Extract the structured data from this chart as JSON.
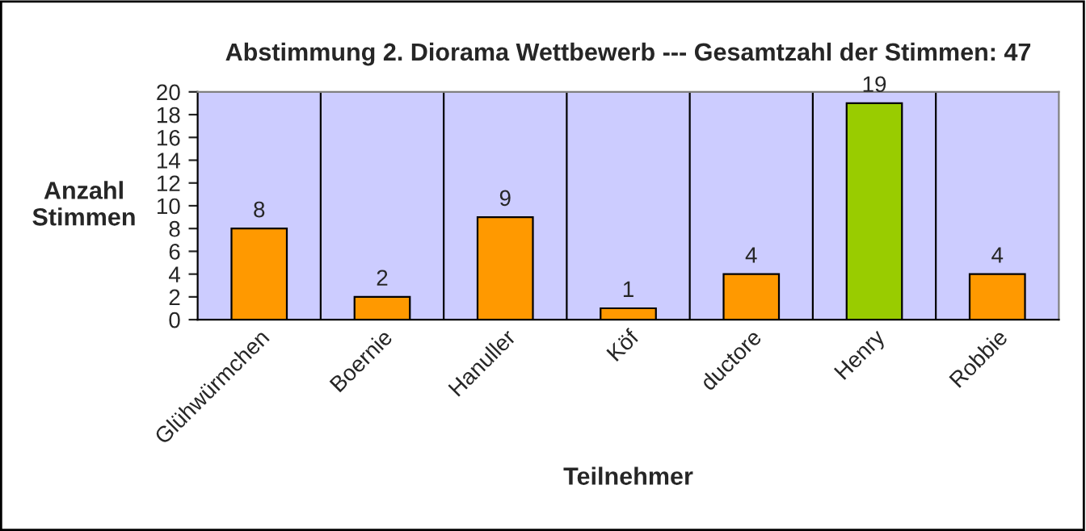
{
  "chart_data": {
    "type": "bar",
    "title": "Abstimmung 2. Diorama Wettbewerb --- Gesamtzahl der Stimmen: 47",
    "xlabel": "Teilnehmer",
    "ylabel": "Anzahl\nStimmen",
    "categories": [
      "Glühwürmchen",
      "Boernie",
      "Hanuller",
      "Köf",
      "ductore",
      "Henry",
      "Robbie"
    ],
    "values": [
      8,
      2,
      9,
      1,
      4,
      19,
      4
    ],
    "colors": [
      "#ff9900",
      "#ff9900",
      "#ff9900",
      "#ff9900",
      "#ff9900",
      "#99cc00",
      "#ff9900"
    ],
    "ylim": [
      0,
      20
    ],
    "yticks": [
      0,
      2,
      4,
      6,
      8,
      10,
      12,
      14,
      16,
      18,
      20
    ],
    "grid": "x",
    "data_labels": true,
    "legend": false
  }
}
